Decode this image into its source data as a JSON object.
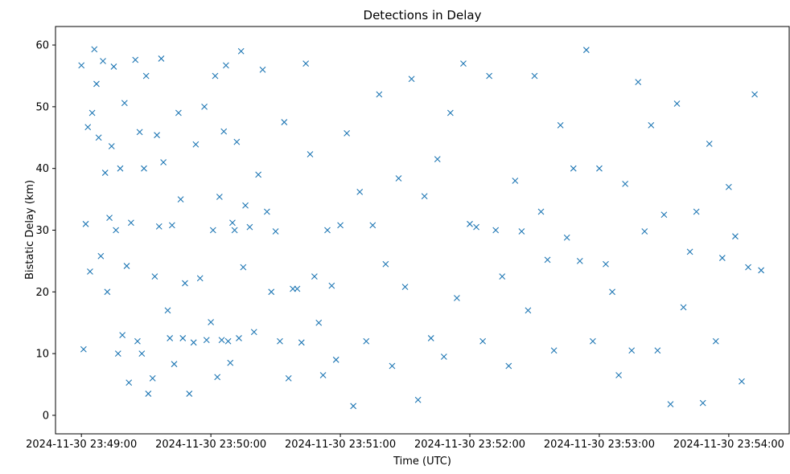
{
  "chart_data": {
    "type": "scatter",
    "title": "Detections in Delay",
    "xlabel": "Time (UTC)",
    "ylabel": "Bistatic Delay (km)",
    "marker": "x",
    "color": "#1f77b4",
    "grid": false,
    "xlim": [
      "2024-11-30 23:48:48",
      "2024-11-30 23:54:28"
    ],
    "ylim": [
      -3,
      63
    ],
    "xticks": [
      "2024-11-30 23:49:00",
      "2024-11-30 23:50:00",
      "2024-11-30 23:51:00",
      "2024-11-30 23:52:00",
      "2024-11-30 23:53:00",
      "2024-11-30 23:54:00"
    ],
    "yticks": [
      0,
      10,
      20,
      30,
      40,
      50,
      60
    ],
    "series": [
      {
        "x": [
          "2024-11-30 23:49:00",
          "2024-11-30 23:49:01",
          "2024-11-30 23:49:02",
          "2024-11-30 23:49:03",
          "2024-11-30 23:49:04",
          "2024-11-30 23:49:05",
          "2024-11-30 23:49:06",
          "2024-11-30 23:49:07",
          "2024-11-30 23:49:08",
          "2024-11-30 23:49:09",
          "2024-11-30 23:49:10",
          "2024-11-30 23:49:11",
          "2024-11-30 23:49:12",
          "2024-11-30 23:49:13",
          "2024-11-30 23:49:14",
          "2024-11-30 23:49:15",
          "2024-11-30 23:49:16",
          "2024-11-30 23:49:17",
          "2024-11-30 23:49:18",
          "2024-11-30 23:49:19",
          "2024-11-30 23:49:20",
          "2024-11-30 23:49:21",
          "2024-11-30 23:49:22",
          "2024-11-30 23:49:23",
          "2024-11-30 23:49:25",
          "2024-11-30 23:49:26",
          "2024-11-30 23:49:27",
          "2024-11-30 23:49:28",
          "2024-11-30 23:49:29",
          "2024-11-30 23:49:30",
          "2024-11-30 23:49:31",
          "2024-11-30 23:49:33",
          "2024-11-30 23:49:34",
          "2024-11-30 23:49:35",
          "2024-11-30 23:49:36",
          "2024-11-30 23:49:37",
          "2024-11-30 23:49:38",
          "2024-11-30 23:49:40",
          "2024-11-30 23:49:41",
          "2024-11-30 23:49:42",
          "2024-11-30 23:49:43",
          "2024-11-30 23:49:45",
          "2024-11-30 23:49:46",
          "2024-11-30 23:49:47",
          "2024-11-30 23:49:48",
          "2024-11-30 23:49:50",
          "2024-11-30 23:49:52",
          "2024-11-30 23:49:53",
          "2024-11-30 23:49:55",
          "2024-11-30 23:49:57",
          "2024-11-30 23:49:58",
          "2024-11-30 23:50:00",
          "2024-11-30 23:50:01",
          "2024-11-30 23:50:02",
          "2024-11-30 23:50:03",
          "2024-11-30 23:50:04",
          "2024-11-30 23:50:05",
          "2024-11-30 23:50:06",
          "2024-11-30 23:50:07",
          "2024-11-30 23:50:08",
          "2024-11-30 23:50:09",
          "2024-11-30 23:50:10",
          "2024-11-30 23:50:11",
          "2024-11-30 23:50:12",
          "2024-11-30 23:50:13",
          "2024-11-30 23:50:14",
          "2024-11-30 23:50:15",
          "2024-11-30 23:50:16",
          "2024-11-30 23:50:18",
          "2024-11-30 23:50:20",
          "2024-11-30 23:50:22",
          "2024-11-30 23:50:24",
          "2024-11-30 23:50:26",
          "2024-11-30 23:50:28",
          "2024-11-30 23:50:30",
          "2024-11-30 23:50:32",
          "2024-11-30 23:50:34",
          "2024-11-30 23:50:36",
          "2024-11-30 23:50:38",
          "2024-11-30 23:50:40",
          "2024-11-30 23:50:42",
          "2024-11-30 23:50:44",
          "2024-11-30 23:50:46",
          "2024-11-30 23:50:48",
          "2024-11-30 23:50:50",
          "2024-11-30 23:50:52",
          "2024-11-30 23:50:54",
          "2024-11-30 23:50:56",
          "2024-11-30 23:50:58",
          "2024-11-30 23:51:00",
          "2024-11-30 23:51:03",
          "2024-11-30 23:51:06",
          "2024-11-30 23:51:09",
          "2024-11-30 23:51:12",
          "2024-11-30 23:51:15",
          "2024-11-30 23:51:18",
          "2024-11-30 23:51:21",
          "2024-11-30 23:51:24",
          "2024-11-30 23:51:27",
          "2024-11-30 23:51:30",
          "2024-11-30 23:51:33",
          "2024-11-30 23:51:36",
          "2024-11-30 23:51:39",
          "2024-11-30 23:51:42",
          "2024-11-30 23:51:45",
          "2024-11-30 23:51:48",
          "2024-11-30 23:51:51",
          "2024-11-30 23:51:54",
          "2024-11-30 23:51:57",
          "2024-11-30 23:52:00",
          "2024-11-30 23:52:03",
          "2024-11-30 23:52:06",
          "2024-11-30 23:52:09",
          "2024-11-30 23:52:12",
          "2024-11-30 23:52:15",
          "2024-11-30 23:52:18",
          "2024-11-30 23:52:21",
          "2024-11-30 23:52:24",
          "2024-11-30 23:52:27",
          "2024-11-30 23:52:30",
          "2024-11-30 23:52:33",
          "2024-11-30 23:52:36",
          "2024-11-30 23:52:39",
          "2024-11-30 23:52:42",
          "2024-11-30 23:52:45",
          "2024-11-30 23:52:48",
          "2024-11-30 23:52:51",
          "2024-11-30 23:52:54",
          "2024-11-30 23:52:57",
          "2024-11-30 23:53:00",
          "2024-11-30 23:53:03",
          "2024-11-30 23:53:06",
          "2024-11-30 23:53:09",
          "2024-11-30 23:53:12",
          "2024-11-30 23:53:15",
          "2024-11-30 23:53:18",
          "2024-11-30 23:53:21",
          "2024-11-30 23:53:24",
          "2024-11-30 23:53:27",
          "2024-11-30 23:53:30",
          "2024-11-30 23:53:33",
          "2024-11-30 23:53:36",
          "2024-11-30 23:53:39",
          "2024-11-30 23:53:42",
          "2024-11-30 23:53:45",
          "2024-11-30 23:53:48",
          "2024-11-30 23:53:51",
          "2024-11-30 23:53:54",
          "2024-11-30 23:53:57",
          "2024-11-30 23:54:00",
          "2024-11-30 23:54:03",
          "2024-11-30 23:54:06",
          "2024-11-30 23:54:09",
          "2024-11-30 23:54:12",
          "2024-11-30 23:54:15"
        ],
        "y": [
          56.7,
          10.7,
          31.0,
          46.7,
          23.3,
          49.0,
          59.3,
          53.7,
          45.0,
          25.8,
          57.4,
          39.3,
          20.0,
          32.0,
          43.6,
          56.5,
          30.0,
          10.0,
          40.0,
          13.0,
          50.6,
          24.2,
          5.3,
          31.2,
          57.6,
          12.0,
          45.9,
          10.0,
          40.0,
          55.0,
          3.5,
          6.0,
          22.5,
          45.4,
          30.6,
          57.8,
          41.0,
          17.0,
          12.5,
          30.8,
          8.3,
          49.0,
          35.0,
          12.5,
          21.4,
          3.5,
          11.8,
          43.9,
          22.2,
          50.0,
          12.2,
          15.1,
          30.0,
          55.0,
          6.2,
          35.4,
          12.2,
          46.0,
          56.7,
          12.0,
          8.5,
          31.2,
          30.0,
          44.3,
          12.5,
          59.0,
          24.0,
          34.0,
          30.5,
          13.5,
          39.0,
          56.0,
          33.0,
          20.0,
          29.8,
          12.0,
          47.5,
          6.0,
          20.5,
          20.5,
          11.8,
          57.0,
          42.3,
          22.5,
          15.0,
          6.5,
          30.0,
          21.0,
          9.0,
          30.8,
          45.7,
          1.5,
          36.2,
          12.0,
          30.8,
          52.0,
          24.5,
          8.0,
          38.4,
          20.8,
          54.5,
          2.5,
          35.5,
          12.5,
          41.5,
          9.5,
          49.0,
          19.0,
          57.0,
          31.0,
          30.5,
          12.0,
          55.0,
          30.0,
          22.5,
          8.0,
          38.0,
          29.8,
          17.0,
          55.0,
          33.0,
          25.2,
          10.5,
          47.0,
          28.8,
          40.0,
          25.0,
          59.2,
          12.0,
          40.0,
          24.5,
          20.0,
          6.5,
          37.5,
          10.5,
          54.0,
          29.8,
          47.0,
          10.5,
          32.5,
          1.8,
          50.5,
          17.5,
          26.5,
          33.0,
          2.0,
          44.0,
          12.0,
          25.5,
          37.0,
          29.0,
          5.5,
          24.0,
          52.0,
          23.5
        ]
      }
    ]
  }
}
